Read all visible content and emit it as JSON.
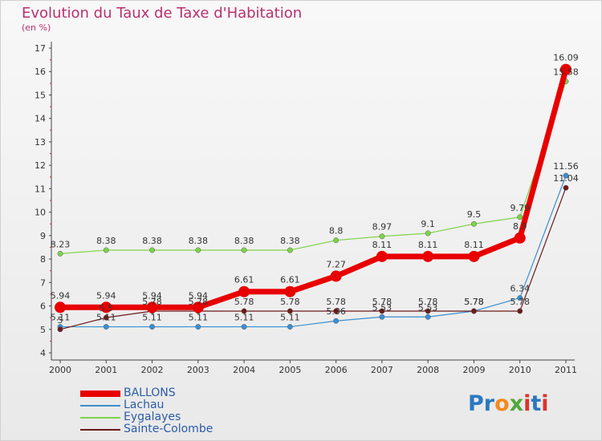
{
  "title": "Evolution du Taux de Taxe d'Habitation",
  "subtitle": "(en %)",
  "logo": {
    "text": "Proxiti",
    "letters": [
      "P",
      "r",
      "o",
      "x",
      "i",
      "t",
      "i"
    ],
    "colors": [
      "#2a78c0",
      "#2a78c0",
      "#f28a1e",
      "#4fa83d",
      "#d9342b",
      "#2a78c0",
      "#d9342b"
    ]
  },
  "chart_data": {
    "type": "line",
    "x": [
      "2000",
      "2001",
      "2002",
      "2003",
      "2004",
      "2005",
      "2006",
      "2007",
      "2008",
      "2009",
      "2010",
      "2011"
    ],
    "ylim": [
      4,
      17
    ],
    "yticks": [
      "4",
      "5",
      "6",
      "7",
      "8",
      "9",
      "10",
      "11",
      "12",
      "13",
      "14",
      "15",
      "16",
      "17"
    ],
    "grid": false,
    "legend_position": "bottom-left",
    "series": [
      {
        "name": "BALLONS",
        "color": "#e80000",
        "values": [
          5.94,
          5.94,
          5.94,
          5.94,
          6.61,
          6.61,
          7.27,
          8.11,
          8.11,
          8.11,
          8.9,
          16.09
        ],
        "labels": [
          "5.94",
          "5.94",
          "5.94",
          "5.94",
          "6.61",
          "6.61",
          "7.27",
          "8.11",
          "8.11",
          "8.11",
          "8.9",
          "16.09"
        ]
      },
      {
        "name": "Lachau",
        "color": "#3a8fd0",
        "values": [
          5.11,
          5.11,
          5.11,
          5.11,
          5.11,
          5.11,
          5.36,
          5.53,
          5.53,
          5.78,
          6.34,
          11.56
        ],
        "labels": [
          "5.11",
          "5.11",
          "5.11",
          "5.11",
          "5.11",
          "5.11",
          "5.36",
          "5.53",
          "5.53",
          "5.78",
          "6.34",
          "11.56"
        ]
      },
      {
        "name": "Eygalayes",
        "color": "#7ed34a",
        "values": [
          8.23,
          8.38,
          8.38,
          8.38,
          8.38,
          8.38,
          8.8,
          8.97,
          9.1,
          9.5,
          9.79,
          15.58
        ],
        "labels": [
          "8.23",
          "8.38",
          "8.38",
          "8.38",
          "8.38",
          "8.38",
          "8.8",
          "8.97",
          "9.1",
          "9.5",
          "9.79",
          "15.58"
        ]
      },
      {
        "name": "Sainte-Colombe",
        "color": "#6e1a1a",
        "values": [
          5.0,
          5.5,
          5.78,
          5.78,
          5.78,
          5.78,
          5.78,
          5.78,
          5.78,
          5.78,
          5.78,
          11.04
        ],
        "labels": [
          "5",
          "5.5",
          "5.78",
          "5.78",
          "5.78",
          "5.78",
          "5.78",
          "5.78",
          "5.78",
          "5.78",
          "5.78",
          "11.04"
        ]
      }
    ]
  }
}
